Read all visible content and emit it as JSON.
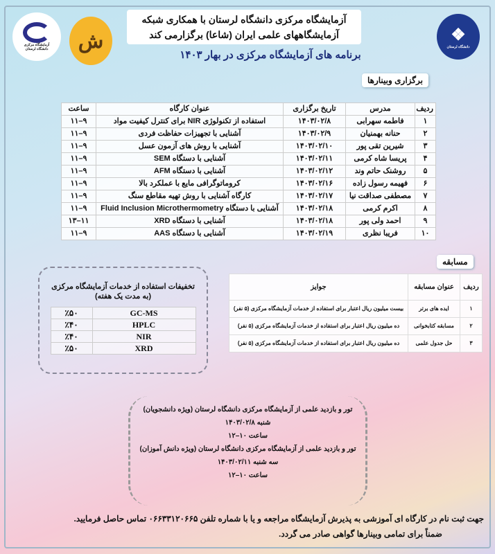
{
  "header": {
    "line1": "آزمایشگاه مرکزی دانشگاه لرستان با همکاری شبکه",
    "line2": "آزمایشگاههای علمی ایران (شاعا) برگزارمی کند",
    "subtitle": "برنامه های آزمایشگاه مرکزی در بهار ۱۴۰۳"
  },
  "logos": {
    "left_caption": "آزمایشگاه مرکزی دانشگاه لرستان",
    "right_caption": "دانشگاه لرستان"
  },
  "webinars": {
    "tab": "برگزاری وبینارها",
    "headers": [
      "ردیف",
      "مدرس",
      "تاریخ برگزاری",
      "عنوان کارگاه",
      "ساعت"
    ],
    "rows": [
      [
        "۱",
        "فاطمه سهرابی",
        "۱۴۰۳/۰۲/۸",
        "استفاده از تکنولوژی NIR برای کنترل کیفیت مواد",
        "۹–۱۱"
      ],
      [
        "۲",
        "حنانه بهمنیان",
        "۱۴۰۳/۰۲/۹",
        "آشنایی با تجهیزات حفاظت فردی",
        "۹–۱۱"
      ],
      [
        "۳",
        "شیرین تقی پور",
        "۱۴۰۳/۰۲/۱۰",
        "آشنایی با روش های آزمون عسل",
        "۹–۱۱"
      ],
      [
        "۴",
        "پریسا شاه کرمی",
        "۱۴۰۳/۰۲/۱۱",
        "آشنایی با دستگاه SEM",
        "۹–۱۱"
      ],
      [
        "۵",
        "روشنک حاتم وند",
        "۱۴۰۳/۰۲/۱۲",
        "آشنایی با دستگاه AFM",
        "۹–۱۱"
      ],
      [
        "۶",
        "فهیمه رسول زاده",
        "۱۴۰۳/۰۲/۱۶",
        "کروماتوگرافی مایع با عملکرد بالا",
        "۹–۱۱"
      ],
      [
        "۷",
        "مصطفی صداقت نیا",
        "۱۴۰۳/۰۲/۱۷",
        "کارگاه آشنایی با روش تهیه مقاطع سنگ",
        "۹–۱۱"
      ],
      [
        "۸",
        "اکرم کرمی",
        "۱۴۰۳/۰۲/۱۸",
        "آشنایی با دستگاه Fluid Inclusion Microthermometry",
        "۹–۱۱"
      ],
      [
        "۹",
        "احمد ولی پور",
        "۱۴۰۳/۰۲/۱۸",
        "آشنایی با دستگاه XRD",
        "۱۱–۱۳"
      ],
      [
        "۱۰",
        "فریبا نظری",
        "۱۴۰۳/۰۲/۱۹",
        "آشنایی با دستگاه AAS",
        "۹–۱۱"
      ]
    ]
  },
  "competition": {
    "tab": "مسابقه",
    "headers": [
      "ردیف",
      "عنوان مسابقه",
      "جوایز"
    ],
    "rows": [
      [
        "۱",
        "ایده های برتر",
        "بیست میلیون ریال اعتبار برای استفاده از خدمات آزمایشگاه مرکزی (۵ نفر)"
      ],
      [
        "۲",
        "مسابقه کتابخوانی",
        "ده میلیون ریال اعتبار برای استفاده از خدمات آزمایشگاه مرکزی (۵ نفر)"
      ],
      [
        "۳",
        "حل جدول علمی",
        "ده میلیون ریال اعتبار برای استفاده از خدمات آزمایشگاه مرکزی (۵ نفر)"
      ]
    ]
  },
  "discounts": {
    "title": "تخفیفات استفاده از خدمات آزمایشگاه مرکزی",
    "subtitle": "(به مدت یک هفته)",
    "rows": [
      [
        "GC-MS",
        "٪۵۰"
      ],
      [
        "HPLC",
        "٪۴۰"
      ],
      [
        "NIR",
        "٪۴۰"
      ],
      [
        "XRD",
        "٪۵۰"
      ]
    ]
  },
  "tour": {
    "lines": [
      "تور و بازدید علمی از آزمایشگاه مرکزی دانشگاه لرستان (ویژه دانشجویان)",
      "شنبه ۱۴۰۳/۰۲/۸",
      "ساعت ۱۰–۱۲",
      "تور و بازدید علمی از آزمایشگاه مرکزی دانشگاه لرستان (ویژه دانش آموزان)",
      "سه شنبه ۱۴۰۳/۰۲/۱۱",
      "ساعت ۱۰–۱۲"
    ]
  },
  "footer": {
    "line1": "جهت ثبت نام در کارگاه ای آموزشی به پذیرش آزمایشگاه مراجعه و یا با شماره تلفن ۰۶۶۳۳۱۲۰۶۶۵ تماس حاصل فرمایید.",
    "line2": "ضمناً برای تمامی وبینارها گواهی صادر می گردد."
  }
}
